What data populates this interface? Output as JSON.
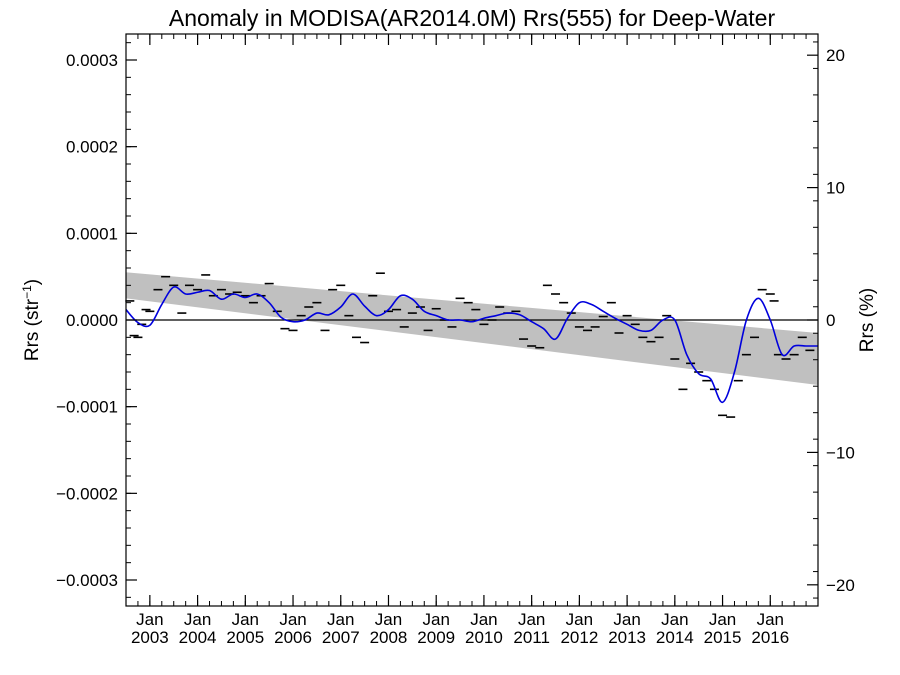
{
  "chart_data": {
    "type": "line",
    "title": "Anomaly in MODISA(AR2014.0M) Rrs(555) for Deep-Water",
    "ylabel_left_base": "Rrs (str",
    "ylabel_left_sup": "−1",
    "ylabel_left_close": ")",
    "ylabel_right": "Rrs (%)",
    "xlim": [
      2002.5,
      2017.0
    ],
    "ylim_left": [
      -0.00033,
      0.00033
    ],
    "ylim_right": [
      -21.6,
      21.6
    ],
    "left_ticks": [
      {
        "v": 0.0003,
        "label": "0.0003"
      },
      {
        "v": 0.0002,
        "label": "0.0002"
      },
      {
        "v": 0.0001,
        "label": "0.0001"
      },
      {
        "v": 0.0,
        "label": "0.0000"
      },
      {
        "v": -0.0001,
        "label": "−0.0001"
      },
      {
        "v": -0.0002,
        "label": "−0.0002"
      },
      {
        "v": -0.0003,
        "label": "−0.0003"
      }
    ],
    "right_ticks": [
      {
        "v": 20,
        "label": "20"
      },
      {
        "v": 10,
        "label": "10"
      },
      {
        "v": 0,
        "label": "0"
      },
      {
        "v": -10,
        "label": "−10"
      },
      {
        "v": -20,
        "label": "−20"
      }
    ],
    "x_ticks": [
      {
        "v": 2003,
        "month": "Jan",
        "year": "2003"
      },
      {
        "v": 2004,
        "month": "Jan",
        "year": "2004"
      },
      {
        "v": 2005,
        "month": "Jan",
        "year": "2005"
      },
      {
        "v": 2006,
        "month": "Jan",
        "year": "2006"
      },
      {
        "v": 2007,
        "month": "Jan",
        "year": "2007"
      },
      {
        "v": 2008,
        "month": "Jan",
        "year": "2008"
      },
      {
        "v": 2009,
        "month": "Jan",
        "year": "2009"
      },
      {
        "v": 2010,
        "month": "Jan",
        "year": "2010"
      },
      {
        "v": 2011,
        "month": "Jan",
        "year": "2011"
      },
      {
        "v": 2012,
        "month": "Jan",
        "year": "2012"
      },
      {
        "v": 2013,
        "month": "Jan",
        "year": "2013"
      },
      {
        "v": 2014,
        "month": "Jan",
        "year": "2014"
      },
      {
        "v": 2015,
        "month": "Jan",
        "year": "2015"
      },
      {
        "v": 2016,
        "month": "Jan",
        "year": "2016"
      }
    ],
    "trend_band": {
      "x": [
        2002.5,
        2017.0
      ],
      "upper": [
        5.5e-05,
        -1.5e-05
      ],
      "lower": [
        2.5e-05,
        -7.5e-05
      ]
    },
    "reference_line": 0.0,
    "smooth_color": "#0000dd",
    "band_color": "#c0c0c0",
    "smooth_series": {
      "x": [
        2002.5,
        2002.75,
        2003.0,
        2003.25,
        2003.5,
        2003.75,
        2004.0,
        2004.25,
        2004.5,
        2004.75,
        2005.0,
        2005.25,
        2005.5,
        2005.75,
        2006.0,
        2006.25,
        2006.5,
        2006.75,
        2007.0,
        2007.25,
        2007.5,
        2007.75,
        2008.0,
        2008.25,
        2008.5,
        2008.75,
        2009.0,
        2009.25,
        2009.5,
        2009.75,
        2010.0,
        2010.25,
        2010.5,
        2010.75,
        2011.0,
        2011.25,
        2011.5,
        2011.75,
        2012.0,
        2012.25,
        2012.5,
        2012.75,
        2013.0,
        2013.25,
        2013.5,
        2013.75,
        2014.0,
        2014.25,
        2014.5,
        2014.75,
        2015.0,
        2015.25,
        2015.5,
        2015.75,
        2016.0,
        2016.25,
        2016.5,
        2016.75,
        2017.0
      ],
      "y": [
        1.2e-05,
        -3e-06,
        -6e-06,
        1.8e-05,
        3.8e-05,
        3e-05,
        3.2e-05,
        3.4e-05,
        2.4e-05,
        3e-05,
        2.6e-05,
        3e-05,
        2e-05,
        3e-06,
        -2e-06,
        0.0,
        8e-06,
        6e-06,
        1.5e-05,
        3e-05,
        1.6e-05,
        5e-06,
        1.2e-05,
        2.8e-05,
        2.4e-05,
        1e-05,
        5e-06,
        0.0,
        0.0,
        -2e-06,
        2e-06,
        5e-06,
        8e-06,
        6e-06,
        -2e-06,
        -1e-05,
        -2.2e-05,
        2e-06,
        2e-05,
        1.8e-05,
        1e-05,
        2e-06,
        -5e-06,
        -1.2e-05,
        -1.2e-05,
        0.0,
        0.0,
        -4e-05,
        -6.2e-05,
        -6.8e-05,
        -9.5e-05,
        -6e-05,
        0.0,
        2.5e-05,
        0.0,
        -4e-05,
        -3e-05,
        -3e-05,
        -3e-05
      ]
    },
    "monthly_values": {
      "x": [
        2002.58,
        2002.67,
        2002.75,
        2002.83,
        2002.92,
        2003.0,
        2003.17,
        2003.33,
        2003.5,
        2003.67,
        2003.83,
        2004.0,
        2004.17,
        2004.33,
        2004.5,
        2004.67,
        2004.83,
        2005.0,
        2005.17,
        2005.33,
        2005.5,
        2005.67,
        2005.83,
        2006.0,
        2006.17,
        2006.33,
        2006.5,
        2006.67,
        2006.83,
        2007.0,
        2007.17,
        2007.33,
        2007.5,
        2007.67,
        2007.83,
        2008.0,
        2008.17,
        2008.33,
        2008.5,
        2008.67,
        2008.83,
        2009.0,
        2009.17,
        2009.33,
        2009.5,
        2009.67,
        2009.83,
        2010.0,
        2010.17,
        2010.33,
        2010.5,
        2010.67,
        2010.83,
        2011.0,
        2011.17,
        2011.33,
        2011.5,
        2011.67,
        2011.83,
        2012.0,
        2012.17,
        2012.33,
        2012.5,
        2012.67,
        2012.83,
        2013.0,
        2013.17,
        2013.33,
        2013.5,
        2013.67,
        2013.83,
        2014.0,
        2014.17,
        2014.33,
        2014.5,
        2014.67,
        2014.83,
        2015.0,
        2015.17,
        2015.33,
        2015.5,
        2015.67,
        2015.83,
        2016.0,
        2016.08,
        2016.17,
        2016.33,
        2016.5,
        2016.67,
        2016.83
      ],
      "y": [
        2.2e-05,
        -1.8e-05,
        -2e-05,
        -5e-06,
        1.2e-05,
        1e-05,
        3.5e-05,
        5e-05,
        4e-05,
        8e-06,
        4e-05,
        3.5e-05,
        5.2e-05,
        2.8e-05,
        3.5e-05,
        3e-05,
        3.2e-05,
        2.8e-05,
        2e-05,
        2.8e-05,
        4.2e-05,
        1e-05,
        -1e-05,
        -1.2e-05,
        5e-06,
        1.5e-05,
        2e-05,
        -1.2e-05,
        3.5e-05,
        4e-05,
        5e-06,
        -2e-05,
        -2.6e-05,
        2.8e-05,
        5.4e-05,
        1e-05,
        1.2e-05,
        -8e-06,
        8e-06,
        1.5e-05,
        -1.2e-05,
        1.3e-05,
        0.0,
        -8e-06,
        2.5e-05,
        2e-05,
        1.2e-05,
        -5e-06,
        0.0,
        1.5e-05,
        8e-06,
        1e-05,
        -2.2e-05,
        -3e-05,
        -3.2e-05,
        4e-05,
        3e-05,
        2e-05,
        8e-06,
        -8e-06,
        -1.2e-05,
        -8e-06,
        4e-06,
        2e-05,
        -1.5e-05,
        5e-06,
        -5e-06,
        -2e-05,
        -2.5e-05,
        -2e-05,
        5e-06,
        -4.5e-05,
        -8e-05,
        -5e-05,
        -6e-05,
        -7e-05,
        -8e-05,
        -0.00011,
        -0.000112,
        -7e-05,
        -4e-05,
        -2e-05,
        3.5e-05,
        3e-05,
        2.2e-05,
        -4e-05,
        -4.5e-05,
        -4e-05,
        -2e-05,
        -3.5e-05
      ]
    }
  }
}
